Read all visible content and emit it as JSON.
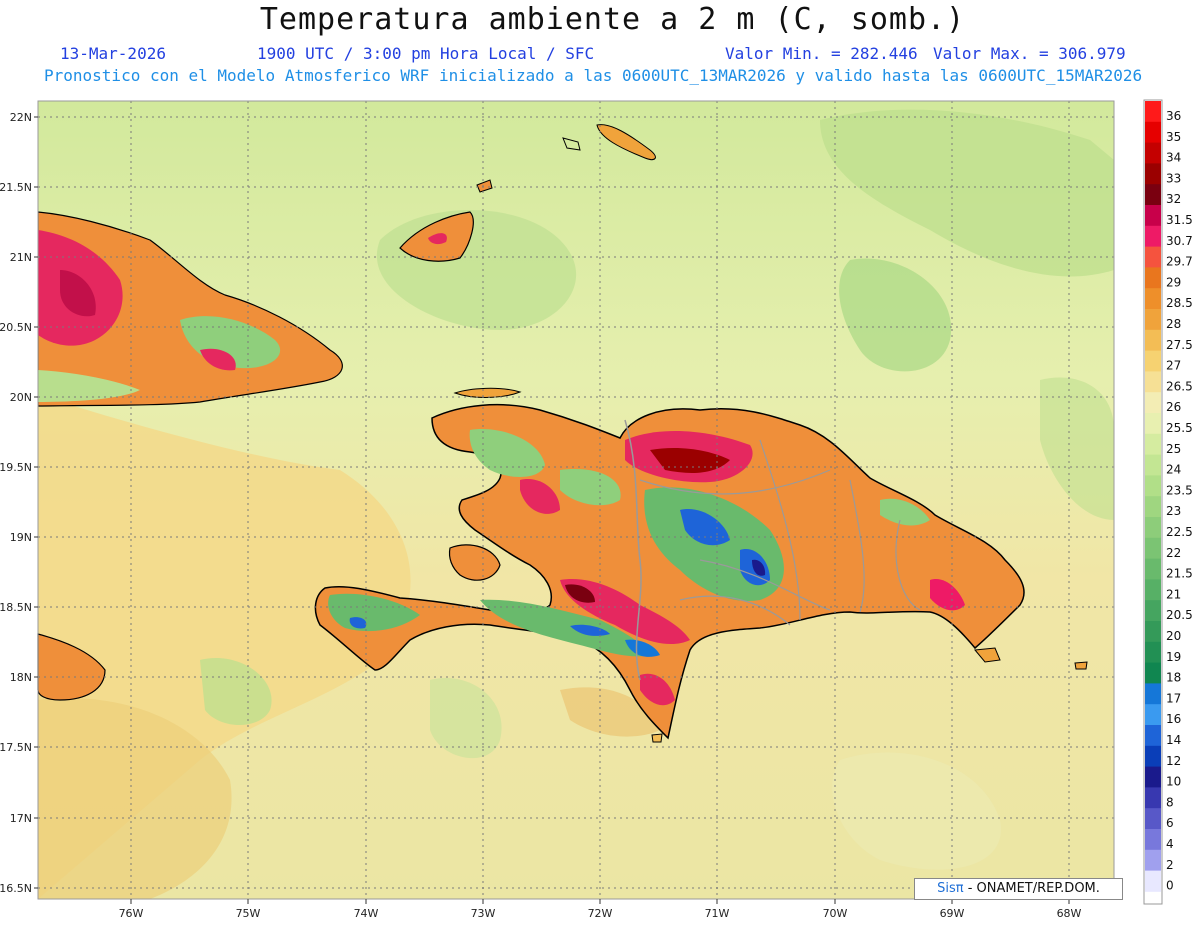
{
  "header": {
    "title": "Temperatura ambiente a 2 m (C, somb.)",
    "date": "13-Mar-2026",
    "time": "1900 UTC / 3:00 pm Hora Local / SFC",
    "min_label": "Valor Min. = 282.446",
    "max_label": "Valor Max. = 306.979",
    "model_line": "Pronostico con el Modelo Atmosferico WRF inicializado a las 0600UTC_13MAR2026 y valido hasta las  0600UTC_15MAR2026"
  },
  "map": {
    "lat_labels": [
      "22N",
      "21.5N",
      "21N",
      "20.5N",
      "20N",
      "19.5N",
      "19N",
      "18.5N",
      "18N",
      "17.5N",
      "17N",
      "16.5N"
    ],
    "lon_labels": [
      "76W",
      "75W",
      "74W",
      "73W",
      "72W",
      "71W",
      "70W",
      "69W",
      "68W"
    ]
  },
  "colorbar": {
    "labels": [
      "36",
      "35",
      "34",
      "33",
      "32",
      "31.5",
      "30.7",
      "29.7",
      "29",
      "28.5",
      "28",
      "27.5",
      "27",
      "26.5",
      "26",
      "25.5",
      "25",
      "24",
      "23.5",
      "23",
      "22.5",
      "22",
      "21.5",
      "21",
      "20.5",
      "20",
      "19",
      "18",
      "17",
      "16",
      "14",
      "12",
      "10",
      "8",
      "6",
      "4",
      "2",
      "0"
    ],
    "colors": [
      "#ff1a1a",
      "#e60000",
      "#c40000",
      "#9b0000",
      "#7a0010",
      "#c8004a",
      "#ee1a66",
      "#f5533e",
      "#e9761e",
      "#ee8f2a",
      "#f0a33b",
      "#f3bd55",
      "#f6d271",
      "#f6e095",
      "#f3edb4",
      "#e8f0b0",
      "#d5eca0",
      "#c3e693",
      "#b1df88",
      "#9fd680",
      "#8dcd7a",
      "#7bc473",
      "#69ba6c",
      "#57b066",
      "#45a560",
      "#349a59",
      "#229054",
      "#108650",
      "#1577d8",
      "#3a9af0",
      "#1e64d8",
      "#0a3eb8",
      "#1a1a8c",
      "#3838b0",
      "#5858c8",
      "#7878dc",
      "#a0a0ee",
      "#e8e8ff"
    ]
  },
  "credit": {
    "brand": "Sisπ",
    "text": "- ONAMET/REP.DOM."
  }
}
